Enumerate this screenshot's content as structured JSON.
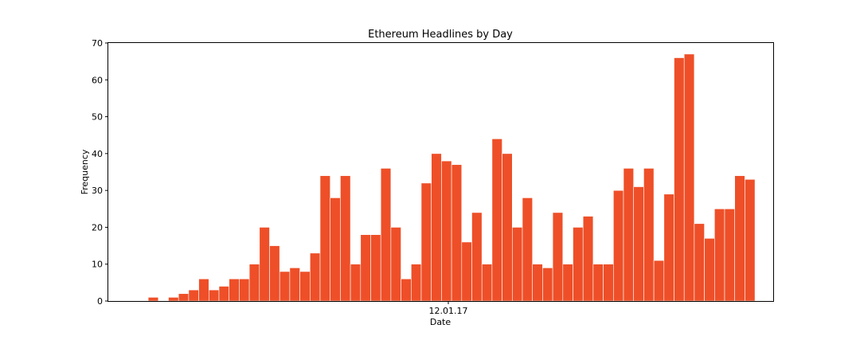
{
  "chart_data": {
    "type": "bar",
    "title": "Ethereum Headlines by Day",
    "xlabel": "Date",
    "ylabel": "Frequency",
    "ylim": [
      0,
      70
    ],
    "yticks": [
      0,
      10,
      20,
      30,
      40,
      50,
      60,
      70
    ],
    "xtick_labels": [
      "12.01.17"
    ],
    "bar_color": "#ee4f28",
    "grid": false,
    "values": [
      0,
      0,
      0,
      1,
      0,
      1,
      2,
      3,
      6,
      3,
      4,
      6,
      6,
      10,
      20,
      15,
      8,
      9,
      8,
      13,
      34,
      28,
      34,
      10,
      18,
      18,
      36,
      20,
      6,
      10,
      32,
      40,
      38,
      37,
      16,
      24,
      10,
      44,
      40,
      20,
      28,
      10,
      9,
      24,
      10,
      20,
      23,
      10,
      10,
      30,
      36,
      31,
      36,
      11,
      29,
      66,
      67,
      21,
      17,
      25,
      25,
      34,
      33
    ]
  }
}
